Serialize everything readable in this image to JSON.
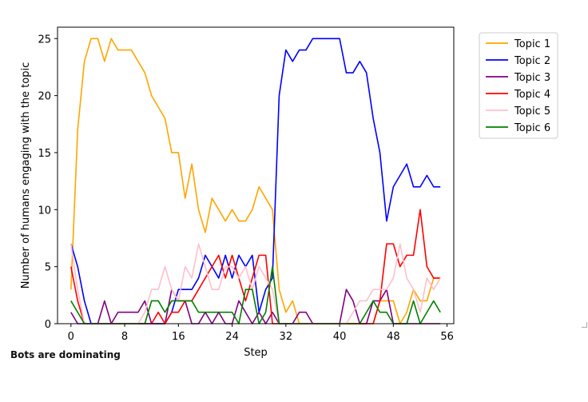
{
  "caption": "Bots are dominating",
  "chart_data": {
    "type": "line",
    "title": "",
    "xlabel": "Step",
    "ylabel": "Number of humans engaging with the topic",
    "xlim": [
      -2,
      57
    ],
    "ylim": [
      0,
      26
    ],
    "xticks": [
      0,
      8,
      16,
      24,
      32,
      40,
      48,
      56
    ],
    "yticks": [
      0,
      5,
      10,
      15,
      20,
      25
    ],
    "grid": false,
    "legend_position": "upper-right-outside",
    "x": [
      0,
      1,
      2,
      3,
      4,
      5,
      6,
      7,
      8,
      9,
      10,
      11,
      12,
      13,
      14,
      15,
      16,
      17,
      18,
      19,
      20,
      21,
      22,
      23,
      24,
      25,
      26,
      27,
      28,
      29,
      30,
      31,
      32,
      33,
      34,
      35,
      36,
      37,
      38,
      39,
      40,
      41,
      42,
      43,
      44,
      45,
      46,
      47,
      48,
      49,
      50,
      51,
      52,
      53,
      54,
      55
    ],
    "series": [
      {
        "name": "Topic 1",
        "color": "#ffa500",
        "values": [
          3,
          17,
          23,
          25,
          25,
          23,
          25,
          24,
          24,
          24,
          23,
          22,
          20,
          19,
          18,
          15,
          15,
          11,
          14,
          10,
          8,
          11,
          10,
          9,
          10,
          9,
          9,
          10,
          12,
          11,
          10,
          3,
          1,
          2,
          0,
          0,
          0,
          0,
          0,
          0,
          0,
          0,
          0,
          0,
          0,
          0,
          2,
          2,
          2,
          0,
          1,
          3,
          2,
          2,
          4,
          4
        ]
      },
      {
        "name": "Topic 2",
        "color": "#0000ff",
        "values": [
          7,
          5,
          2,
          0,
          0,
          0,
          0,
          0,
          0,
          0,
          0,
          0,
          0,
          0,
          0,
          1,
          3,
          3,
          3,
          4,
          6,
          5,
          4,
          6,
          4,
          6,
          5,
          6,
          1,
          3,
          4,
          20,
          24,
          23,
          24,
          24,
          25,
          25,
          25,
          25,
          25,
          22,
          22,
          23,
          22,
          18,
          15,
          9,
          12,
          13,
          14,
          12,
          12,
          13,
          12,
          12
        ]
      },
      {
        "name": "Topic 3",
        "color": "#800080",
        "values": [
          1,
          0,
          0,
          0,
          0,
          2,
          0,
          1,
          1,
          1,
          1,
          2,
          0,
          0,
          0,
          3,
          2,
          2,
          0,
          0,
          1,
          0,
          1,
          0,
          0,
          2,
          1,
          0,
          1,
          0,
          1,
          0,
          0,
          0,
          1,
          1,
          0,
          0,
          0,
          0,
          0,
          3,
          2,
          0,
          0,
          2,
          2,
          3,
          0,
          0,
          0,
          0,
          0,
          0,
          0,
          0
        ]
      },
      {
        "name": "Topic 4",
        "color": "#ff0000",
        "values": [
          5,
          2,
          0,
          0,
          0,
          0,
          0,
          0,
          0,
          0,
          0,
          0,
          0,
          1,
          0,
          1,
          1,
          2,
          2,
          3,
          4,
          5,
          6,
          4,
          6,
          4,
          2,
          4,
          6,
          6,
          0,
          0,
          0,
          0,
          0,
          0,
          0,
          0,
          0,
          0,
          0,
          0,
          0,
          0,
          0,
          0,
          2,
          7,
          7,
          5,
          6,
          6,
          10,
          5,
          4,
          4
        ]
      },
      {
        "name": "Topic 5",
        "color": "#ffc0cb",
        "values": [
          7,
          3,
          0,
          0,
          0,
          0,
          0,
          0,
          0,
          0,
          0,
          1,
          3,
          3,
          5,
          3,
          2,
          5,
          4,
          7,
          5,
          3,
          3,
          5,
          5,
          4,
          5,
          3,
          5,
          4,
          3,
          0,
          0,
          0,
          0,
          0,
          0,
          0,
          0,
          0,
          0,
          0,
          1,
          2,
          2,
          3,
          3,
          3,
          4,
          7,
          4,
          3,
          1,
          4,
          3,
          4
        ]
      },
      {
        "name": "Topic 6",
        "color": "#008000",
        "values": [
          2,
          1,
          0,
          0,
          0,
          0,
          0,
          0,
          0,
          0,
          0,
          0,
          2,
          2,
          1,
          2,
          2,
          2,
          2,
          1,
          1,
          1,
          1,
          1,
          1,
          0,
          3,
          3,
          0,
          1,
          5,
          0,
          0,
          0,
          0,
          0,
          0,
          0,
          0,
          0,
          0,
          0,
          0,
          0,
          1,
          2,
          1,
          1,
          0,
          0,
          0,
          2,
          0,
          1,
          2,
          1
        ]
      }
    ]
  }
}
